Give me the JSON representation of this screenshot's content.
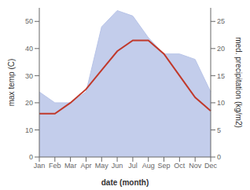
{
  "chart_data": {
    "type": "line",
    "categories": [
      "Jan",
      "Feb",
      "Mar",
      "Apr",
      "May",
      "Jun",
      "Jul",
      "Aug",
      "Sep",
      "Oct",
      "Nov",
      "Dec"
    ],
    "xlabel": "date (month)",
    "ylabel": "max temp (C)",
    "y2label": "med. precipitation (kg/m2)",
    "series": [
      {
        "type": "area",
        "axis": "y2",
        "color": "#b8c4e8",
        "values": [
          12,
          10,
          10,
          12,
          24,
          27,
          26,
          22,
          19,
          19,
          18,
          12
        ]
      },
      {
        "type": "line",
        "color": "#c0392b",
        "values": [
          16,
          16,
          20,
          25,
          32,
          39,
          43,
          43,
          38,
          30,
          22,
          17
        ]
      }
    ],
    "ylim": [
      0,
      55
    ],
    "yticks": [
      0,
      10,
      20,
      30,
      40,
      50
    ],
    "y2lim": [
      0,
      27.5
    ],
    "y2ticks": [
      0,
      5,
      10,
      15,
      20,
      25
    ],
    "grid": false
  }
}
